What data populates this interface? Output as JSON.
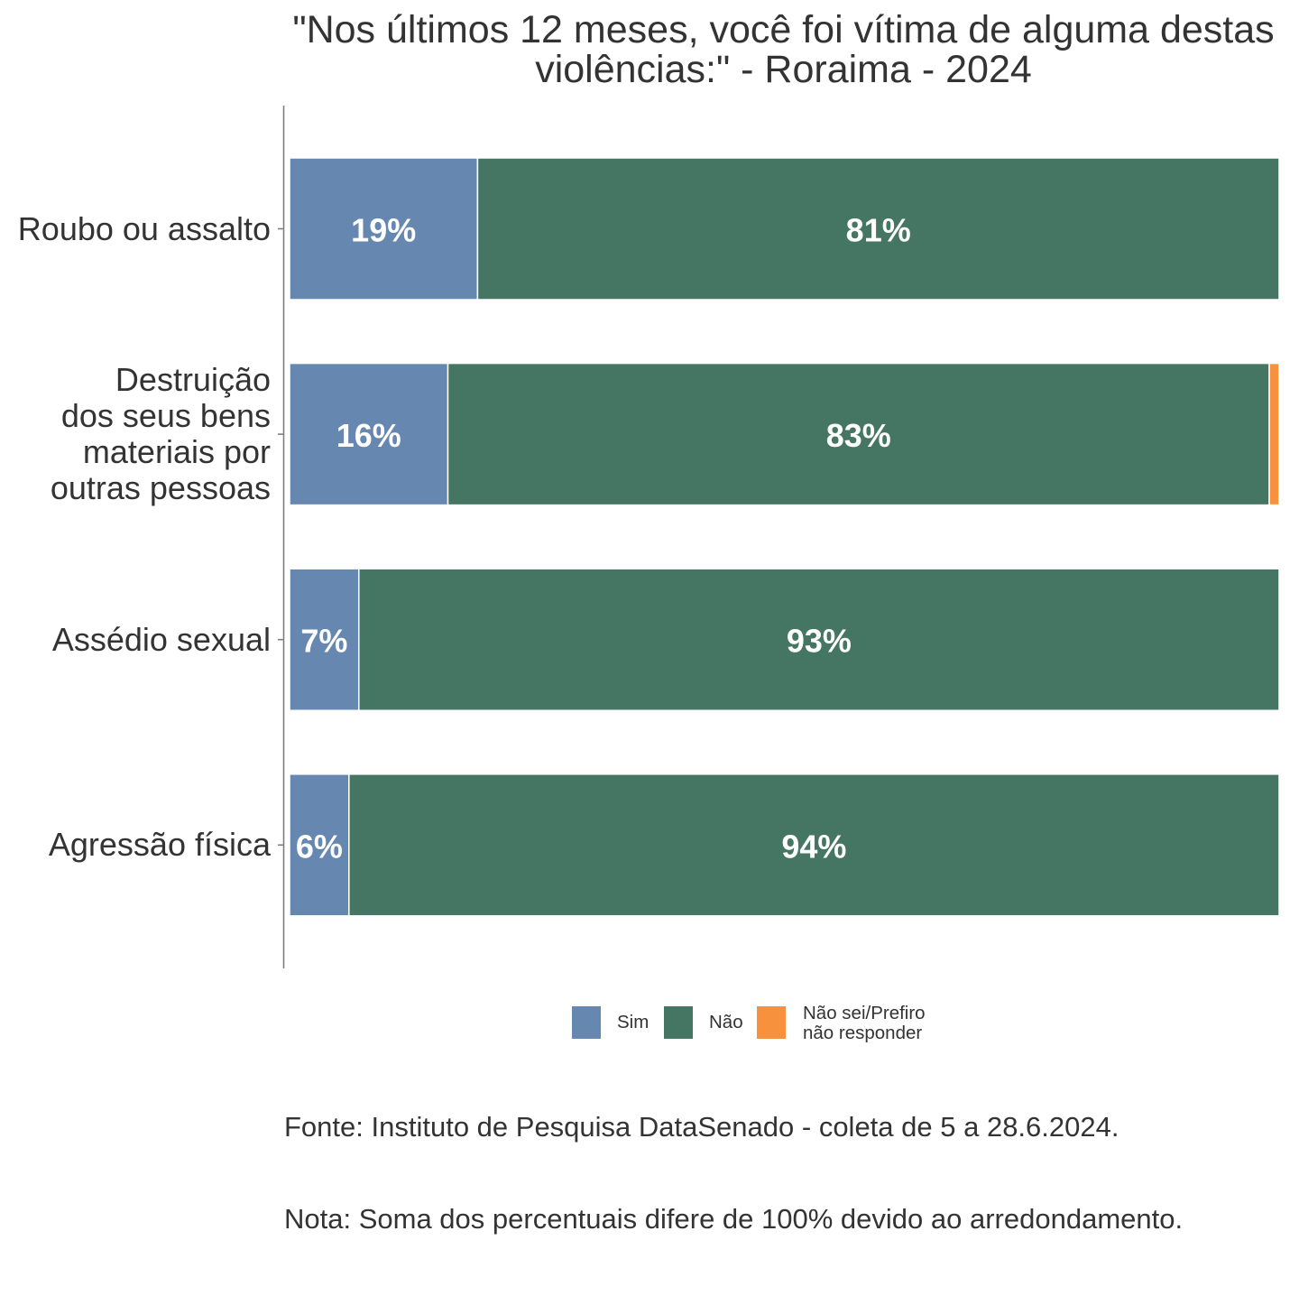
{
  "chart_data": {
    "type": "bar",
    "orientation": "horizontal",
    "stacked": true,
    "title": "\"Nos últimos 12 meses, você foi vítima de alguma destas\nviolências:\" - Roraima - 2024",
    "categories": [
      "Roubo ou assalto",
      "Destruição\ndos seus bens\nmateriais por\noutras pessoas",
      "Assédio sexual",
      "Agressão física"
    ],
    "series": [
      {
        "name": "Sim",
        "color": "#6687b0",
        "values": [
          19,
          16,
          7,
          6
        ],
        "labels": [
          "19%",
          "16%",
          "7%",
          "6%"
        ]
      },
      {
        "name": "Não",
        "color": "#457563",
        "values": [
          81,
          83,
          93,
          94
        ],
        "labels": [
          "81%",
          "83%",
          "93%",
          "94%"
        ]
      },
      {
        "name": "Não sei/Prefiro\nnão responder",
        "color": "#f7913d",
        "values": [
          0,
          1,
          0,
          0
        ]
      }
    ],
    "xlim": [
      0,
      100
    ],
    "grid": false,
    "legend_position": "bottom",
    "caption": {
      "source": "Fonte: Instituto de Pesquisa DataSenado - coleta de 5 a 28.6.2024.",
      "note": "Nota: Soma dos percentuais difere de 100% devido ao arredondamento."
    }
  }
}
